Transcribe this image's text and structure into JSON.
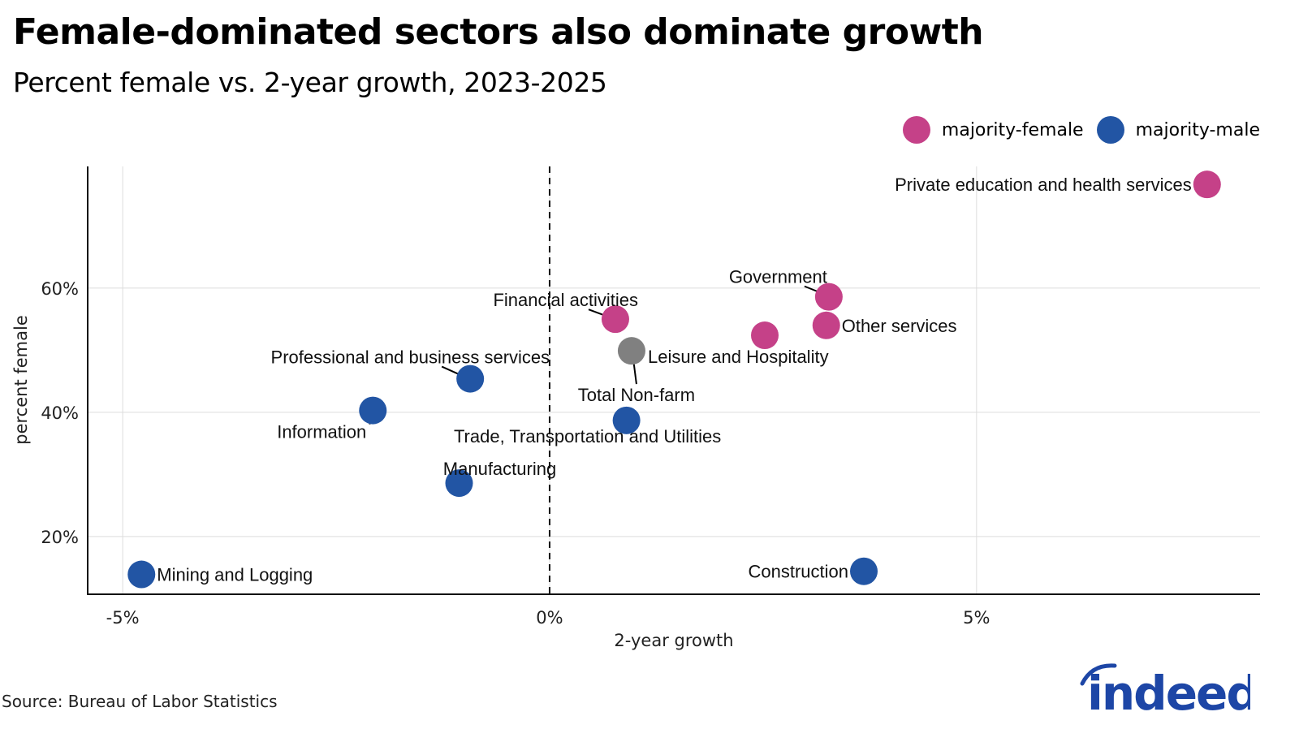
{
  "title": "Female-dominated sectors also dominate growth",
  "subtitle": "Percent female vs. 2-year growth, 2023-2025",
  "source": "Source: Bureau of Labor Statistics",
  "logo": {
    "text": "indeed",
    "color": "#1d46a6"
  },
  "legend": [
    {
      "label": "majority-female",
      "color": "#c54188"
    },
    {
      "label": "majority-male",
      "color": "#2255a4"
    }
  ],
  "colors": {
    "female": "#c54188",
    "male": "#2255a4",
    "total": "#808080"
  },
  "chart_data": {
    "type": "scatter",
    "title": "Female-dominated sectors also dominate growth",
    "subtitle": "Percent female vs. 2-year growth, 2023-2025",
    "xlabel": "2-year growth",
    "ylabel": "percent female",
    "xlim": [
      -5.41,
      8.32
    ],
    "ylim": [
      10.7,
      79.6
    ],
    "xticks": [
      -5,
      0,
      5
    ],
    "xtick_labels": [
      "-5%",
      "0%",
      "5%"
    ],
    "yticks": [
      20,
      40,
      60
    ],
    "ytick_labels": [
      "20%",
      "40%",
      "60%"
    ],
    "reference_line": {
      "axis": "x",
      "value": 0,
      "style": "dashed"
    },
    "grid": true,
    "legend_position": "top-right",
    "points": [
      {
        "label": "Private education and health services",
        "x": 7.7,
        "y": 76.7,
        "group": "majority-female",
        "label_pos": "left"
      },
      {
        "label": "Government",
        "x": 3.27,
        "y": 58.6,
        "group": "majority-female",
        "label_pos": "upper-left-leader"
      },
      {
        "label": "Other services",
        "x": 3.24,
        "y": 54.0,
        "group": "majority-female",
        "label_pos": "right"
      },
      {
        "label": "Leisure and Hospitality",
        "x": 2.52,
        "y": 52.4,
        "group": "majority-female",
        "label_pos": "below-left"
      },
      {
        "label": "Financial activities",
        "x": 0.77,
        "y": 55.0,
        "group": "majority-female",
        "label_pos": "upper-left-leader"
      },
      {
        "label": "Total Non-farm",
        "x": 0.96,
        "y": 49.9,
        "group": "total",
        "label_pos": "below-leader"
      },
      {
        "label": "Professional and business services",
        "x": -0.93,
        "y": 45.4,
        "group": "majority-male",
        "label_pos": "upper-left-leader"
      },
      {
        "label": "Information",
        "x": -2.07,
        "y": 40.3,
        "group": "majority-male",
        "label_pos": "below-left-leader"
      },
      {
        "label": "Trade, Transportation and Utilities",
        "x": 0.9,
        "y": 38.7,
        "group": "majority-male",
        "label_pos": "below"
      },
      {
        "label": "Manufacturing",
        "x": -1.06,
        "y": 28.6,
        "group": "majority-male",
        "label_pos": "above"
      },
      {
        "label": "Mining and Logging",
        "x": -4.78,
        "y": 13.9,
        "group": "majority-male",
        "label_pos": "right"
      },
      {
        "label": "Construction",
        "x": 3.68,
        "y": 14.4,
        "group": "majority-male",
        "label_pos": "left"
      }
    ]
  }
}
